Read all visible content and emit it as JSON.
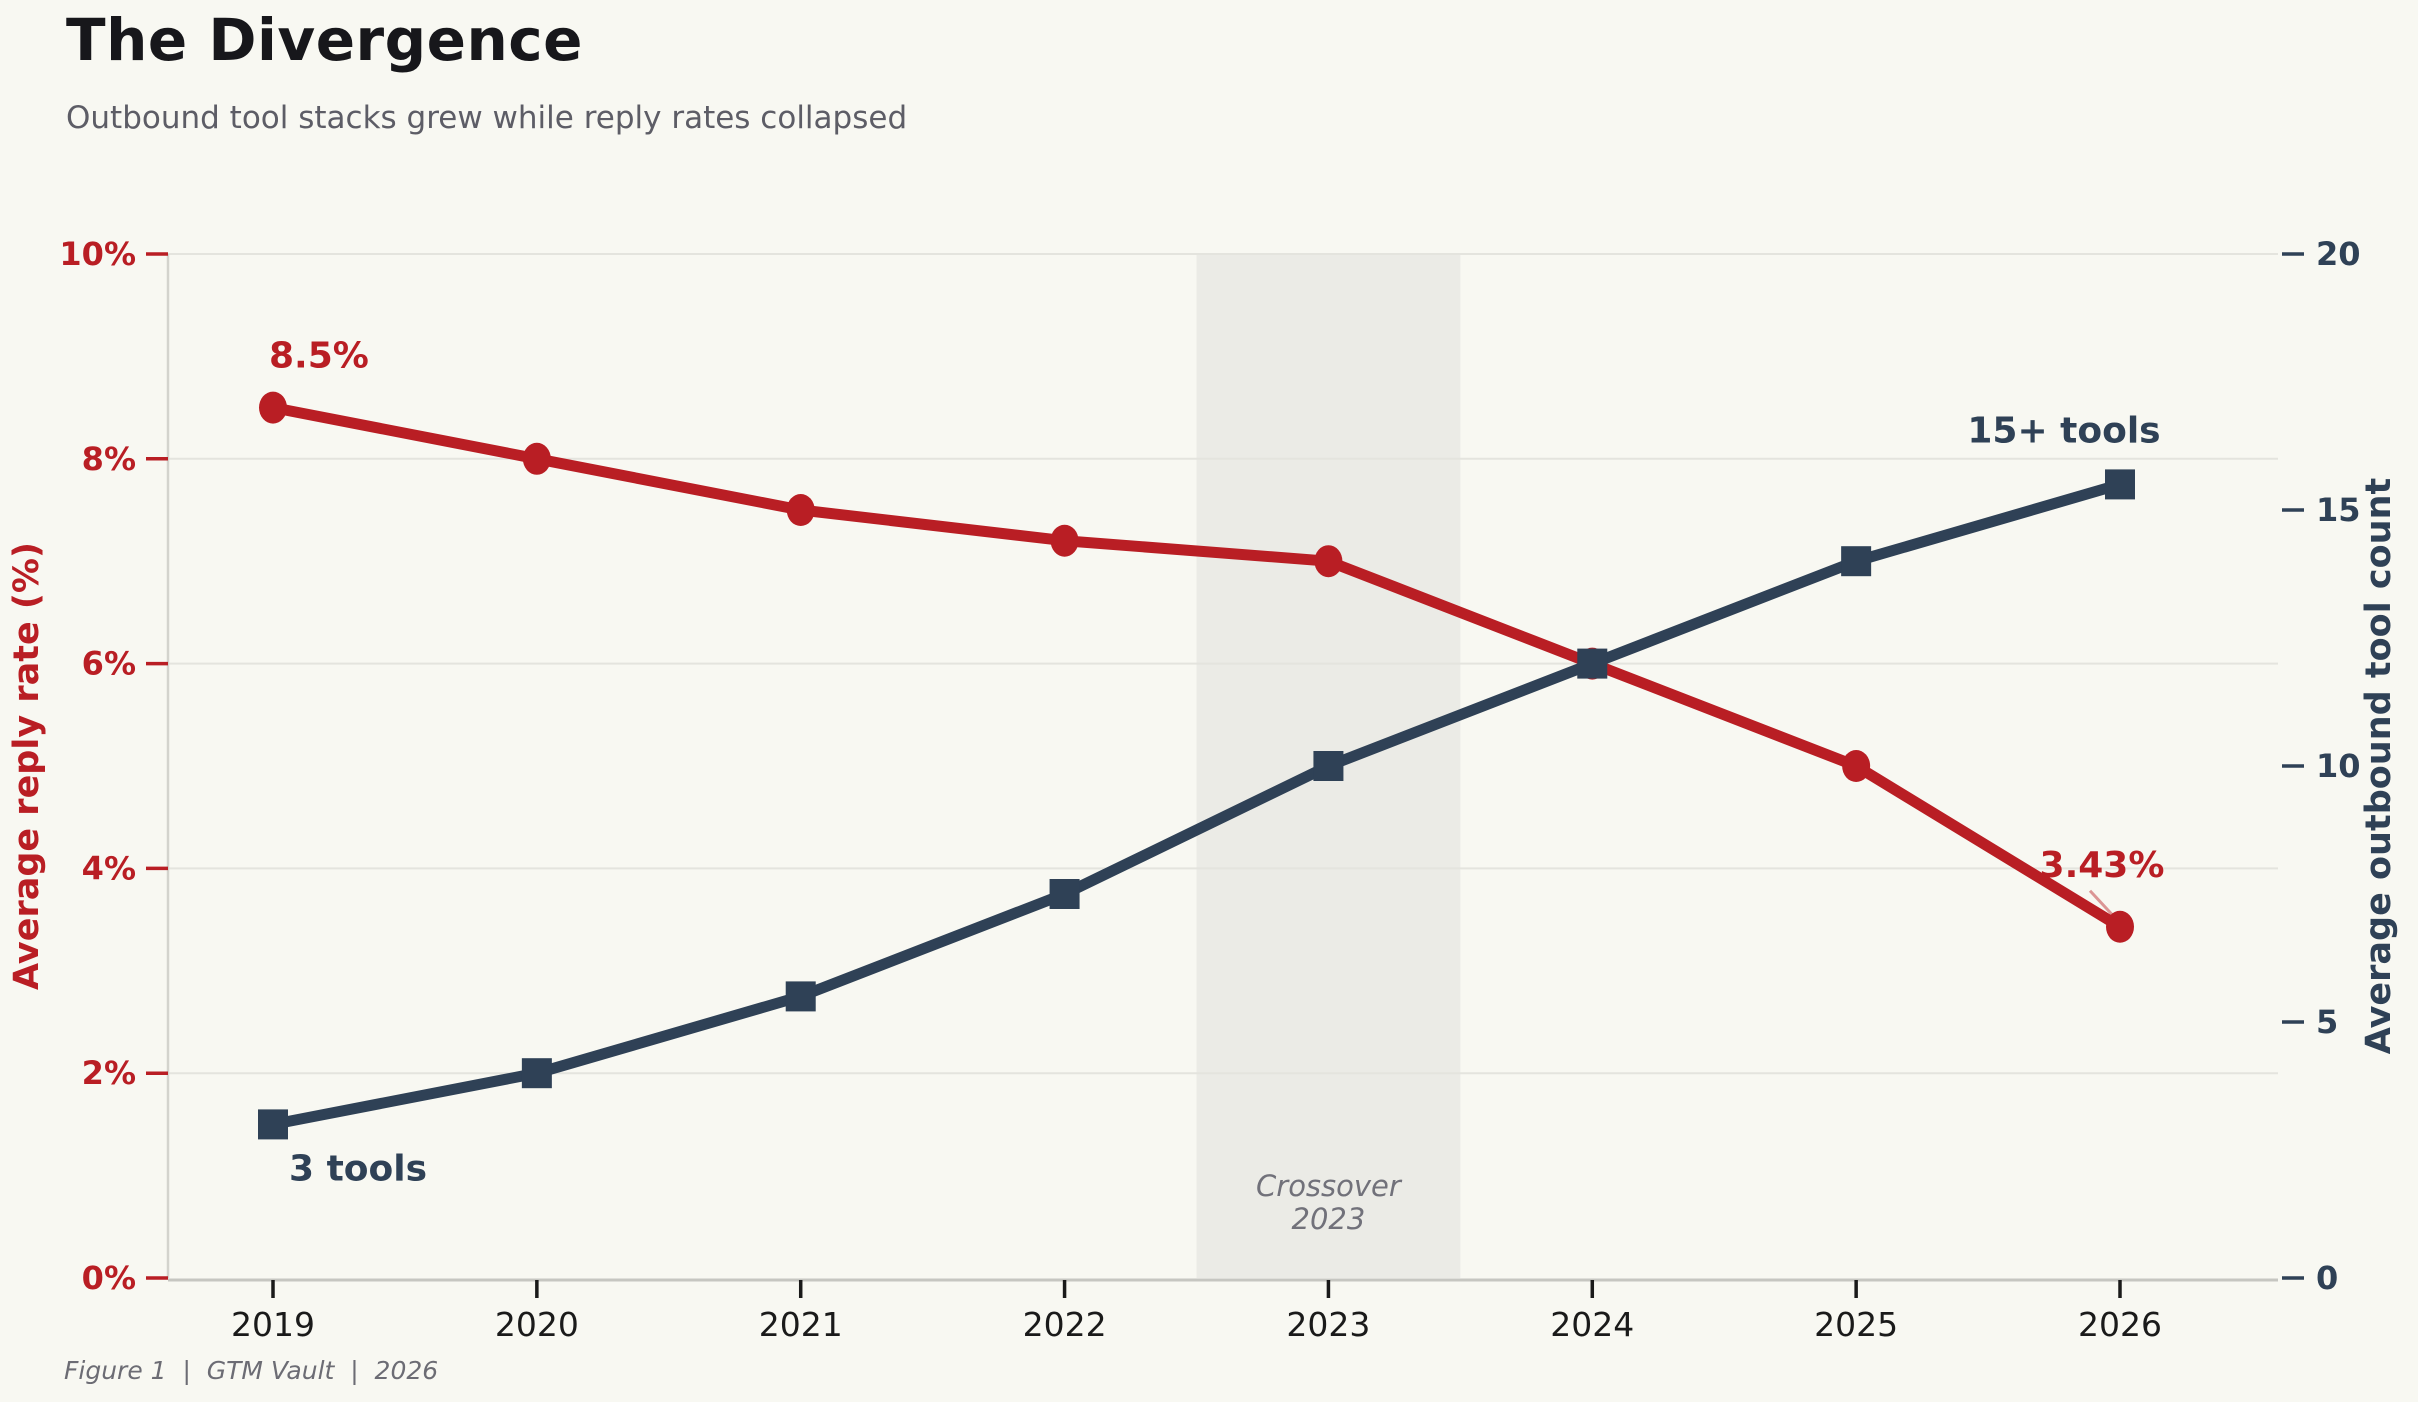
{
  "header": {
    "title": "The Divergence",
    "subtitle": "Outbound tool stacks grew while reply rates collapsed"
  },
  "footer": {
    "caption": "Figure 1  |  GTM Vault  |  2026"
  },
  "colors": {
    "background": "#f8f8f2",
    "reply_red": "#b91e24",
    "tools_navy": "#2f4156",
    "gridline": "#e4e4de",
    "left_spine": "#d3d3cd",
    "bottom_spine": "#c6c6c1",
    "x_tick": "#1a1a1a",
    "band_fill": "#ebebe6",
    "band_text": "#71717a",
    "subtitle_gray": "#5d5d66",
    "footer_gray": "#6c6c74"
  },
  "chart_data": {
    "type": "line",
    "title": "The Divergence",
    "subtitle": "Outbound tool stacks grew while reply rates collapsed",
    "x": [
      2019,
      2020,
      2021,
      2022,
      2023,
      2024,
      2025,
      2026
    ],
    "x_tick_labels": [
      "2019",
      "2020",
      "2021",
      "2022",
      "2023",
      "2024",
      "2025",
      "2026"
    ],
    "series": [
      {
        "name": "Average reply rate (%)",
        "axis": "left",
        "marker": "circle",
        "color": "#b91e24",
        "values": [
          8.5,
          8.0,
          7.5,
          7.2,
          7.0,
          6.0,
          5.0,
          3.43
        ]
      },
      {
        "name": "Average outbound tool count",
        "axis": "right",
        "marker": "square",
        "color": "#2f4156",
        "values": [
          3,
          4,
          5.5,
          7.5,
          10,
          12,
          14,
          15.5
        ]
      }
    ],
    "left_axis": {
      "label": "Average reply rate (%)",
      "color": "#b91e24",
      "range": [
        0,
        10
      ],
      "tick_values": [
        0,
        2,
        4,
        6,
        8,
        10
      ],
      "tick_labels": [
        "0%",
        "2%",
        "4%",
        "6%",
        "8%",
        "10%"
      ]
    },
    "right_axis": {
      "label": "Average outbound tool count",
      "color": "#2f4156",
      "range": [
        0,
        20
      ],
      "tick_values": [
        0,
        5,
        10,
        15,
        20
      ],
      "tick_labels": [
        "0",
        "5",
        "10",
        "15",
        "20"
      ]
    },
    "grid": "horizontal",
    "legend_position": "none",
    "shaded_band": {
      "x_from": 2022.5,
      "x_to": 2023.5,
      "label_lines": [
        "Crossover",
        "2023"
      ]
    },
    "annotations": [
      {
        "id": "start-reply",
        "text": "8.5%",
        "series": 0,
        "x": 2019
      },
      {
        "id": "end-reply",
        "text": "3.43%",
        "series": 0,
        "x": 2026,
        "leader": true
      },
      {
        "id": "start-tools",
        "text": "3 tools",
        "series": 1,
        "x": 2019
      },
      {
        "id": "end-tools",
        "text": "15+ tools",
        "series": 1,
        "x": 2026
      }
    ]
  }
}
